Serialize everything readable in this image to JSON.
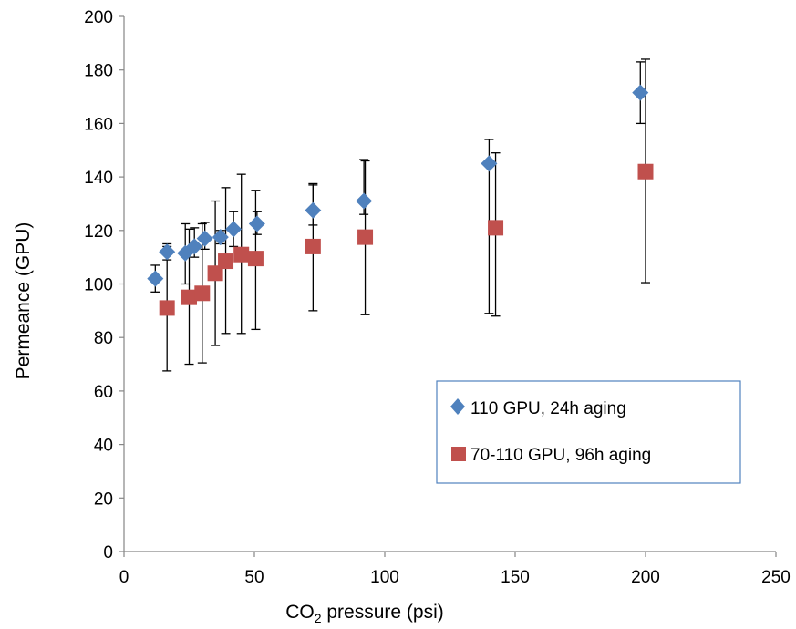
{
  "chart_data": {
    "type": "scatter",
    "xlabel_main": "CO",
    "xlabel_sub": "2",
    "xlabel_rest": " pressure (psi)",
    "ylabel": "Permeance  (GPU)",
    "xlim": [
      0,
      250
    ],
    "ylim": [
      0,
      200
    ],
    "xticks": [
      0,
      50,
      100,
      150,
      200,
      250
    ],
    "yticks": [
      0,
      20,
      40,
      60,
      80,
      100,
      120,
      140,
      160,
      180,
      200
    ],
    "xtick_labels": [
      "0",
      "50",
      "100",
      "150",
      "200",
      "250"
    ],
    "ytick_labels": [
      "0",
      "20",
      "40",
      "60",
      "80",
      "100",
      "120",
      "140",
      "160",
      "180",
      "200"
    ],
    "grid": false,
    "legend_position": "right",
    "series": [
      {
        "name": "110 GPU, 24h aging",
        "color": "#4F81BD",
        "marker": "diamond",
        "x": [
          12,
          16.5,
          23.5,
          27,
          31,
          37,
          42,
          51,
          72.5,
          92,
          140,
          198
        ],
        "y": [
          102,
          112,
          111.5,
          114,
          117,
          117.5,
          120.5,
          122.5,
          127.5,
          131,
          145,
          171.5
        ],
        "yerr_low": [
          97,
          109,
          100,
          110,
          113,
          115,
          114,
          118.5,
          122,
          126,
          89,
          160
        ],
        "yerr_high": [
          107,
          115,
          122.5,
          121,
          123,
          120,
          127,
          127,
          137.5,
          146.5,
          154,
          183
        ]
      },
      {
        "name": "70-110 GPU, 96h aging",
        "color": "#C0504D",
        "marker": "square",
        "x": [
          16.5,
          25,
          30,
          35,
          39,
          45,
          50.5,
          72.5,
          92.5,
          142.5,
          200
        ],
        "y": [
          91,
          95,
          96.5,
          104,
          108.5,
          111,
          109.5,
          114,
          117.5,
          121,
          142
        ],
        "yerr_low": [
          67.5,
          70,
          70.5,
          77,
          81.5,
          81.5,
          83,
          90,
          88.5,
          88,
          100.5
        ],
        "yerr_high": [
          114,
          120.5,
          122.5,
          131,
          136,
          141,
          135,
          137,
          146,
          149,
          184
        ]
      }
    ]
  }
}
